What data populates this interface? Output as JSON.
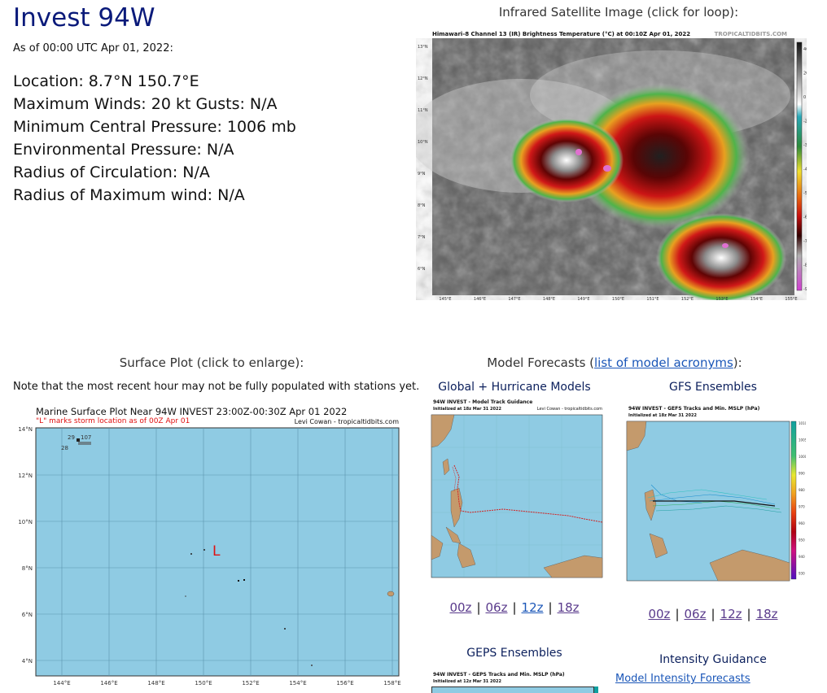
{
  "storm": {
    "title": "Invest 94W",
    "as_of": "As of 00:00 UTC Apr 01, 2022:",
    "details": [
      "Location: 8.7°N 150.7°E",
      "Maximum Winds: 20 kt  Gusts: N/A",
      "Minimum Central Pressure: 1006 mb",
      "Environmental Pressure: N/A",
      "Radius of Circulation: N/A",
      "Radius of Maximum wind: N/A"
    ]
  },
  "satellite": {
    "caption": "Infrared Satellite Image (click for loop):",
    "image_title": "Himawari-8 Channel 13 (IR) Brightness Temperature (°C) at 00:10Z Apr 01, 2022",
    "credit": "TROPICALTIDBITS.COM",
    "lat_labels": [
      "13°N",
      "12°N",
      "11°N",
      "10°N",
      "9°N",
      "8°N",
      "7°N",
      "6°N"
    ],
    "lon_labels": [
      "145°E",
      "146°E",
      "147°E",
      "148°E",
      "149°E",
      "150°E",
      "151°E",
      "152°E",
      "153°E",
      "154°E",
      "155°E"
    ],
    "scale_labels": [
      "40",
      "20",
      "0",
      "-20",
      "-30",
      "-40",
      "-50",
      "-60",
      "-70",
      "-80",
      "-90"
    ]
  },
  "surface": {
    "caption": "Surface Plot (click to enlarge):",
    "note": "Note that the most recent hour may not be fully populated with stations yet.",
    "plot_title": "Marine Surface Plot Near 94W INVEST 23:00Z-00:30Z Apr 01 2022",
    "plot_subtitle": "\"L\" marks storm location as of 00Z Apr 01",
    "credit": "Levi Cowan - tropicaltidbits.com",
    "storm_marker": "L",
    "station_values": [
      "29",
      "107",
      "28"
    ],
    "lat_labels": [
      "14°N",
      "12°N",
      "10°N",
      "8°N",
      "6°N",
      "4°N"
    ],
    "lon_labels": [
      "144°E",
      "146°E",
      "148°E",
      "150°E",
      "152°E",
      "154°E",
      "156°E",
      "158°E"
    ]
  },
  "models": {
    "caption_prefix": "Model Forecasts (",
    "caption_link": "list of model acronyms",
    "caption_suffix": "):",
    "global_title": "Global + Hurricane Models",
    "global_img_title": "94W INVEST - Model Track Guidance",
    "global_img_sub": "Initialized at 18z Mar 31 2022",
    "global_img_credit": "Levi Cowan - tropicaltidbits.com",
    "gfs_title": "GFS Ensembles",
    "gfs_img_title": "94W INVEST - GEFS Tracks and Min. MSLP (hPa)",
    "gfs_img_sub": "Initialized at 18z Mar 31 2022",
    "gfs_scale": [
      "1010",
      "1005",
      "1000",
      "990",
      "980",
      "970",
      "960",
      "950",
      "940",
      "930"
    ],
    "runs_left": [
      "00z",
      "06z",
      "12z",
      "18z"
    ],
    "runs_right": [
      "00z",
      "06z",
      "12z",
      "18z"
    ],
    "geps_title": "GEPS Ensembles",
    "geps_img_title": "94W INVEST - GEPS Tracks and Min. MSLP (hPa)",
    "geps_img_sub": "Initialized at 12z Mar 31 2022",
    "intensity_title": "Intensity Guidance",
    "intensity_link": "Model Intensity Forecasts"
  },
  "colors": {
    "title": "#0a1a7a",
    "link": "#1a56b8",
    "visited_link": "#5a3b8c",
    "ocean": "#8fcbe3",
    "land": "#c49a6c",
    "storm_marker": "#e01010"
  }
}
